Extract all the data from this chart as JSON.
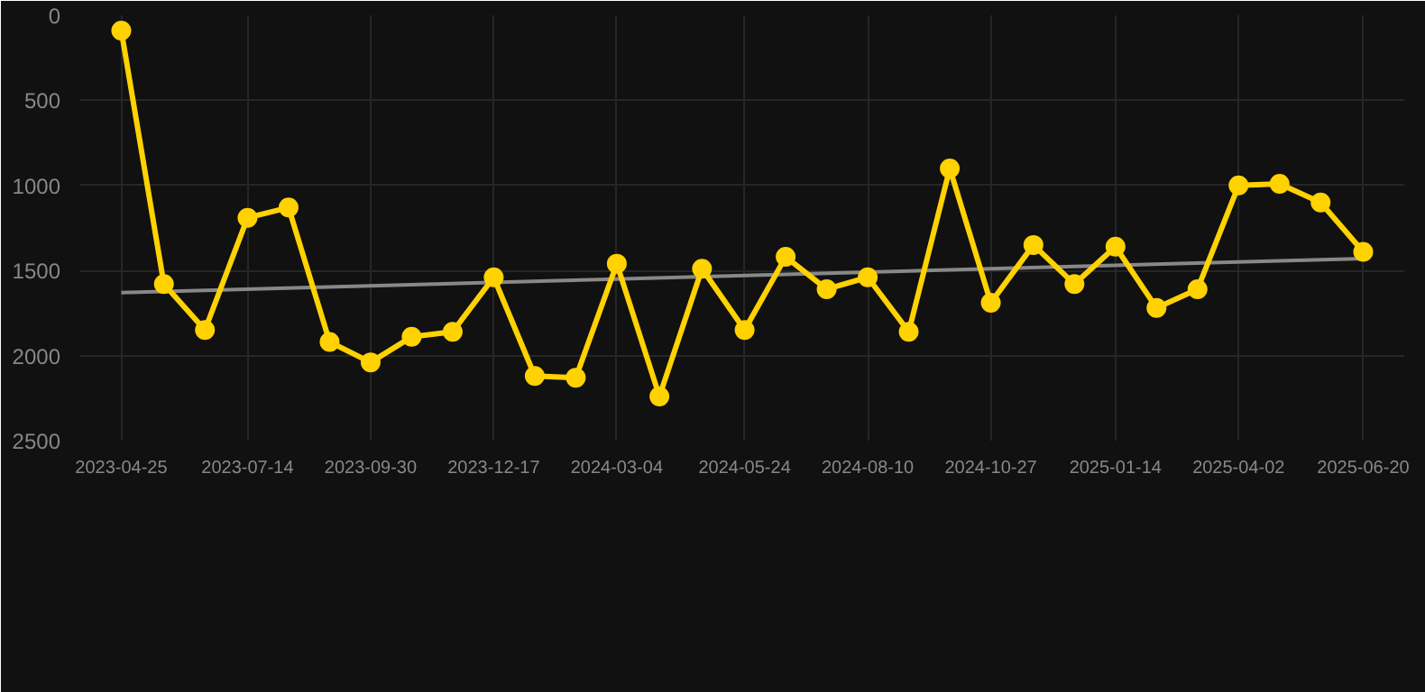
{
  "chart_data": {
    "type": "line",
    "x": [
      "2023-04-25",
      "2023-05-22",
      "2023-06-17",
      "2023-07-14",
      "2023-08-09",
      "2023-09-04",
      "2023-09-30",
      "2023-10-26",
      "2023-11-21",
      "2023-12-17",
      "2024-01-12",
      "2024-02-07",
      "2024-03-04",
      "2024-03-31",
      "2024-04-27",
      "2024-05-24",
      "2024-06-19",
      "2024-07-15",
      "2024-08-10",
      "2024-09-05",
      "2024-10-01",
      "2024-10-27",
      "2024-11-23",
      "2024-12-19",
      "2025-01-14",
      "2025-02-09",
      "2025-03-07",
      "2025-04-02",
      "2025-04-28",
      "2025-05-24",
      "2025-06-20"
    ],
    "series": [
      {
        "color": "#ffd200",
        "marker": "circle",
        "values": [
          90,
          1580,
          1850,
          1190,
          1130,
          1920,
          2040,
          1890,
          1860,
          1540,
          2120,
          2130,
          1460,
          2240,
          1490,
          1850,
          1420,
          1610,
          1540,
          1860,
          900,
          1690,
          1350,
          1580,
          1360,
          1720,
          1610,
          1000,
          990,
          1100,
          1390
        ]
      },
      {
        "type": "line",
        "color": "#888888",
        "marker": "none",
        "x": [
          "2023-04-25",
          "2025-06-20"
        ],
        "values": [
          1630,
          1430
        ]
      }
    ],
    "xlim": [
      "2023-03-30",
      "2025-07-16"
    ],
    "xticks": [
      "2023-04-25",
      "2023-07-14",
      "2023-09-30",
      "2023-12-17",
      "2024-03-04",
      "2024-05-24",
      "2024-08-10",
      "2024-10-27",
      "2025-01-14",
      "2025-04-02",
      "2025-06-20"
    ],
    "ylim": [
      2500,
      0
    ],
    "yticks": [
      0,
      500,
      1000,
      1500,
      2000,
      2500
    ],
    "grid": true
  }
}
